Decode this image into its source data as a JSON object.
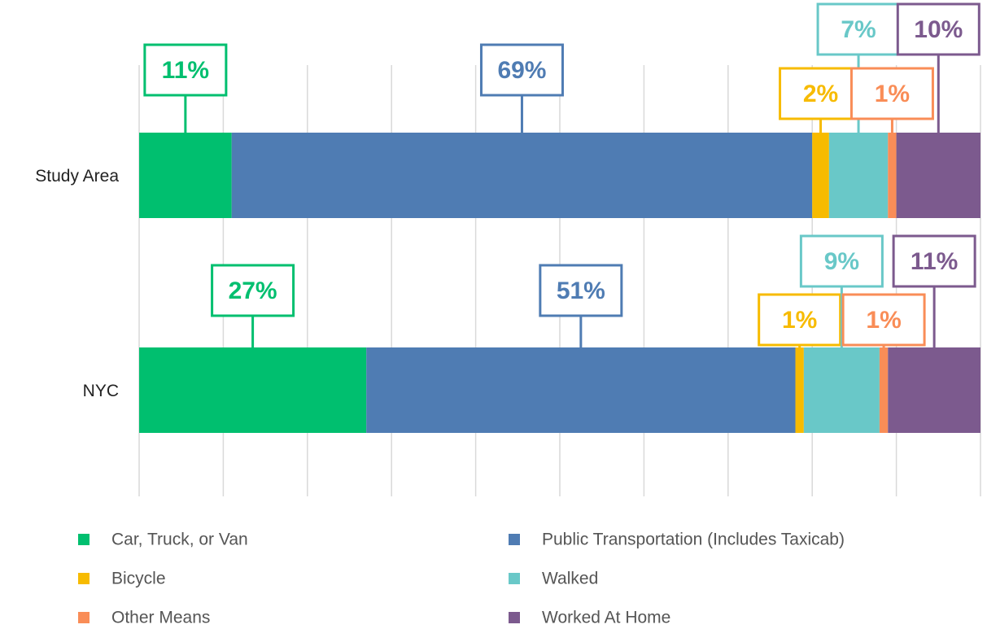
{
  "chart_data": {
    "type": "stacked-bar-horizontal",
    "categories": [
      "Study Area",
      "NYC"
    ],
    "series": [
      {
        "name": "Car, Truck, or Van",
        "color": "#00bf6f",
        "values": [
          11,
          27
        ],
        "value_labels": [
          "11%",
          "27%"
        ]
      },
      {
        "name": "Public Transportation (Includes Taxicab)",
        "color": "#4f7cb3",
        "values": [
          69,
          51
        ],
        "value_labels": [
          "69%",
          "51%"
        ]
      },
      {
        "name": "Bicycle",
        "color": "#f7bb00",
        "values": [
          2,
          1
        ],
        "value_labels": [
          "2%",
          "1%"
        ]
      },
      {
        "name": "Walked",
        "color": "#69c8c8",
        "values": [
          7,
          9
        ],
        "value_labels": [
          "7%",
          "9%"
        ]
      },
      {
        "name": "Other Means",
        "color": "#f98d57",
        "values": [
          1,
          1
        ],
        "value_labels": [
          "1%",
          "1%"
        ]
      },
      {
        "name": "Worked At Home",
        "color": "#7c5a8e",
        "values": [
          10,
          11
        ],
        "value_labels": [
          "10%",
          "11%"
        ]
      }
    ],
    "xlim": [
      0,
      100
    ],
    "xticks": [
      0,
      10,
      20,
      30,
      40,
      50,
      60,
      70,
      80,
      90,
      100
    ],
    "grid": true
  }
}
